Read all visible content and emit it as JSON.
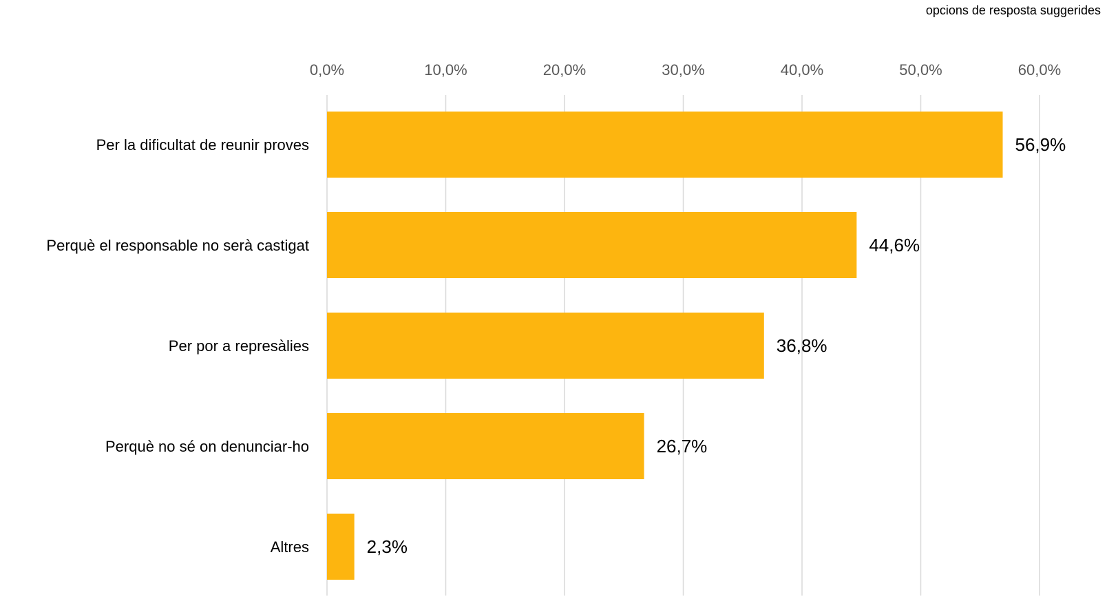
{
  "chart_data": {
    "type": "bar",
    "orientation": "horizontal",
    "note": "opcions de resposta suggerides",
    "categories": [
      "Per la dificultat de reunir proves",
      "Perquè el responsable no serà castigat",
      "Per por a represàlies",
      "Perquè no sé on denunciar-ho",
      "Altres"
    ],
    "values": [
      56.9,
      44.6,
      36.8,
      26.7,
      2.3
    ],
    "value_labels": [
      "56,9%",
      "44,6%",
      "36,8%",
      "26,7%",
      "2,3%"
    ],
    "xlim": [
      0,
      60
    ],
    "ticks": [
      0,
      10,
      20,
      30,
      40,
      50,
      60
    ],
    "tick_labels": [
      "0,0%",
      "10,0%",
      "20,0%",
      "30,0%",
      "40,0%",
      "50,0%",
      "60,0%"
    ],
    "axis_position": "top",
    "grid": true,
    "legend": "none",
    "colors": {
      "bar": "#FDB50F",
      "grid": "#D9D9D9",
      "tick_text": "#595959",
      "label_text": "#000000"
    }
  }
}
